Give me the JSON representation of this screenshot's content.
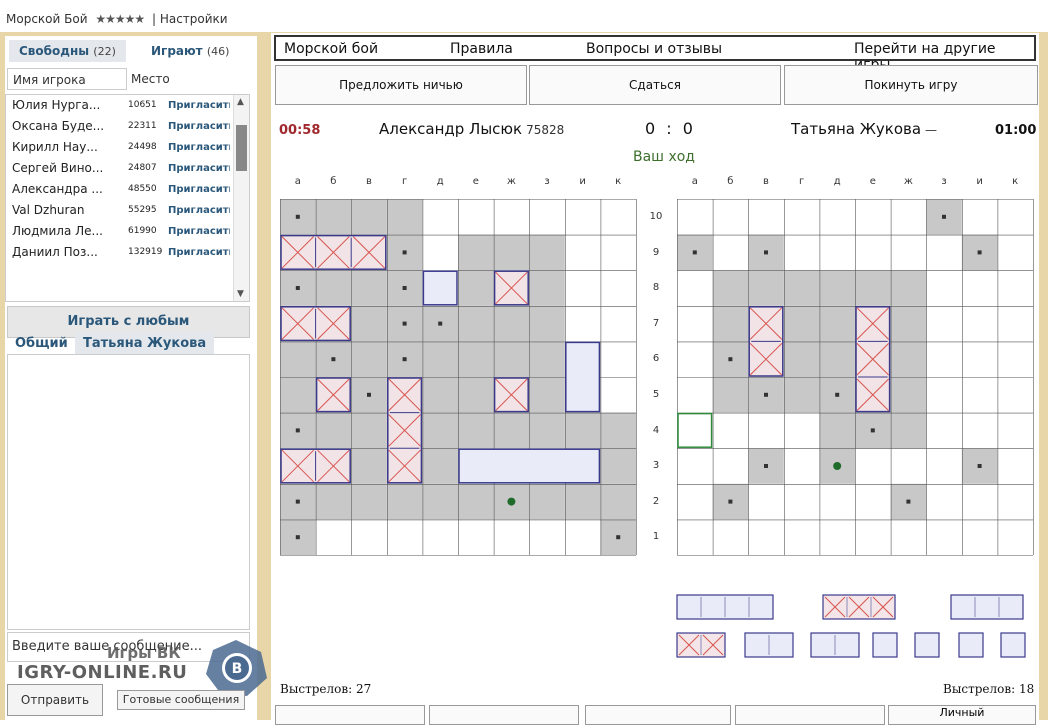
{
  "topbar": {
    "app": "Морской Бой",
    "stars": "★★★★★",
    "sep": "|",
    "settings": "Настройки"
  },
  "left": {
    "tabs": [
      {
        "label": "Свободны",
        "count": "(22)"
      },
      {
        "label": "Играют",
        "count": "(46)"
      }
    ],
    "name_placeholder": "Имя игрока",
    "place_label": "Место",
    "players": [
      {
        "name": "Юлия Нурга...",
        "rating": "10651",
        "action": "Пригласить"
      },
      {
        "name": "Оксана Буде...",
        "rating": "22311",
        "action": "Пригласить"
      },
      {
        "name": "Кирилл Нау...",
        "rating": "24498",
        "action": "Пригласить"
      },
      {
        "name": "Сергей Вино...",
        "rating": "24807",
        "action": "Пригласить"
      },
      {
        "name": "Александра ...",
        "rating": "48550",
        "action": "Пригласить"
      },
      {
        "name": "Val Dzhuran",
        "rating": "55295",
        "action": "Пригласить"
      },
      {
        "name": "Людмила Ле...",
        "rating": "61990",
        "action": "Пригласить"
      },
      {
        "name": "Даниил Поз...",
        "rating": "132919",
        "action": "Пригласить"
      }
    ],
    "play_any": "Играть с любым",
    "chat_tabs": [
      "Общий",
      "Татьяна Жукова"
    ],
    "message_placeholder": "Введите ваше сообщение...",
    "send": "Отправить",
    "ready_msgs": "Готовые сообщения",
    "watermark_top": "Игры ВК",
    "watermark": "IGRY-ONLINE.RU",
    "vk_letter": "В"
  },
  "nav": {
    "title": "Морской бой",
    "rules": "Правила",
    "faq": "Вопросы и отзывы",
    "other": "Перейти на другие игры"
  },
  "actions": {
    "draw": "Предложить ничью",
    "surrender": "Сдаться",
    "leave": "Покинуть игру"
  },
  "game": {
    "timer_left": "00:58",
    "timer_right": "01:00",
    "player_left": "Александр Лысюк",
    "rating_left": "75828",
    "player_right": "Татьяна Жукова",
    "rating_right": "—",
    "score": "0 : 0",
    "turn": "Ваш ход",
    "columns": [
      "а",
      "б",
      "в",
      "г",
      "д",
      "е",
      "ж",
      "з",
      "и",
      "к"
    ],
    "rows": [
      "10",
      "9",
      "8",
      "7",
      "6",
      "5",
      "4",
      "3",
      "2",
      "1"
    ],
    "shots_left": "Выстрелов: 27",
    "shots_right": "Выстрелов: 18",
    "bottom_btn_last": "Личный"
  },
  "colors": {
    "miss": "#c8c8c8",
    "hit": "#d9534f",
    "ship_border": "#3a3a8c",
    "ship_fill": "#e9ecf8",
    "timer_left": "#a0282d",
    "timer_right": "#111111",
    "turn": "#3d6e2c"
  }
}
